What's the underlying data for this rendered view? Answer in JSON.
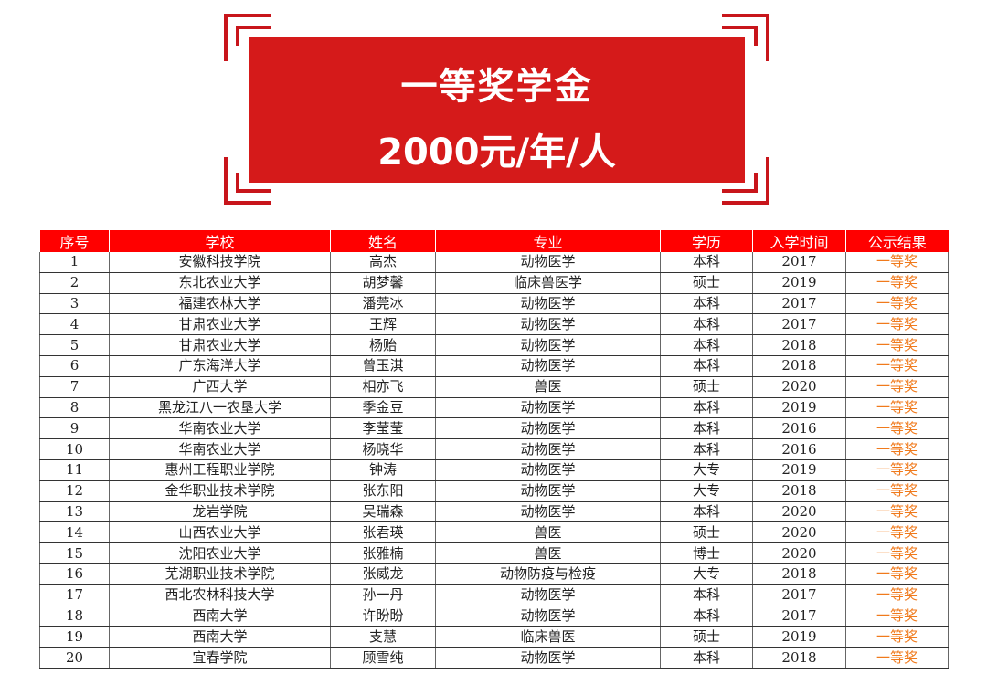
{
  "banner": {
    "title": "一等奖学金",
    "amount": "2000元/年/人"
  },
  "colors": {
    "banner": "#d51a1a",
    "header": "#ff0000",
    "result": "#f07a1c"
  },
  "table": {
    "headers": [
      "序号",
      "学校",
      "姓名",
      "专业",
      "学历",
      "入学时间",
      "公示结果"
    ],
    "rows": [
      [
        "1",
        "安徽科技学院",
        "高杰",
        "动物医学",
        "本科",
        "2017",
        "一等奖"
      ],
      [
        "2",
        "东北农业大学",
        "胡梦馨",
        "临床兽医学",
        "硕士",
        "2019",
        "一等奖"
      ],
      [
        "3",
        "福建农林大学",
        "潘莞冰",
        "动物医学",
        "本科",
        "2017",
        "一等奖"
      ],
      [
        "4",
        "甘肃农业大学",
        "王辉",
        "动物医学",
        "本科",
        "2017",
        "一等奖"
      ],
      [
        "5",
        "甘肃农业大学",
        "杨贻",
        "动物医学",
        "本科",
        "2018",
        "一等奖"
      ],
      [
        "6",
        "广东海洋大学",
        "曾玉淇",
        "动物医学",
        "本科",
        "2018",
        "一等奖"
      ],
      [
        "7",
        "广西大学",
        "相亦飞",
        "兽医",
        "硕士",
        "2020",
        "一等奖"
      ],
      [
        "8",
        "黑龙江八一农垦大学",
        "季金豆",
        "动物医学",
        "本科",
        "2019",
        "一等奖"
      ],
      [
        "9",
        "华南农业大学",
        "李莹莹",
        "动物医学",
        "本科",
        "2016",
        "一等奖"
      ],
      [
        "10",
        "华南农业大学",
        "杨晓华",
        "动物医学",
        "本科",
        "2016",
        "一等奖"
      ],
      [
        "11",
        "惠州工程职业学院",
        "钟涛",
        "动物医学",
        "大专",
        "2019",
        "一等奖"
      ],
      [
        "12",
        "金华职业技术学院",
        "张东阳",
        "动物医学",
        "大专",
        "2018",
        "一等奖"
      ],
      [
        "13",
        "龙岩学院",
        "吴瑞森",
        "动物医学",
        "本科",
        "2020",
        "一等奖"
      ],
      [
        "14",
        "山西农业大学",
        "张君瑛",
        "兽医",
        "硕士",
        "2020",
        "一等奖"
      ],
      [
        "15",
        "沈阳农业大学",
        "张雅楠",
        "兽医",
        "博士",
        "2020",
        "一等奖"
      ],
      [
        "16",
        "芜湖职业技术学院",
        "张威龙",
        "动物防疫与检疫",
        "大专",
        "2018",
        "一等奖"
      ],
      [
        "17",
        "西北农林科技大学",
        "孙一丹",
        "动物医学",
        "本科",
        "2017",
        "一等奖"
      ],
      [
        "18",
        "西南大学",
        "许盼盼",
        "动物医学",
        "本科",
        "2017",
        "一等奖"
      ],
      [
        "19",
        "西南大学",
        "支慧",
        "临床兽医",
        "硕士",
        "2019",
        "一等奖"
      ],
      [
        "20",
        "宜春学院",
        "顾雪纯",
        "动物医学",
        "本科",
        "2018",
        "一等奖"
      ]
    ]
  }
}
